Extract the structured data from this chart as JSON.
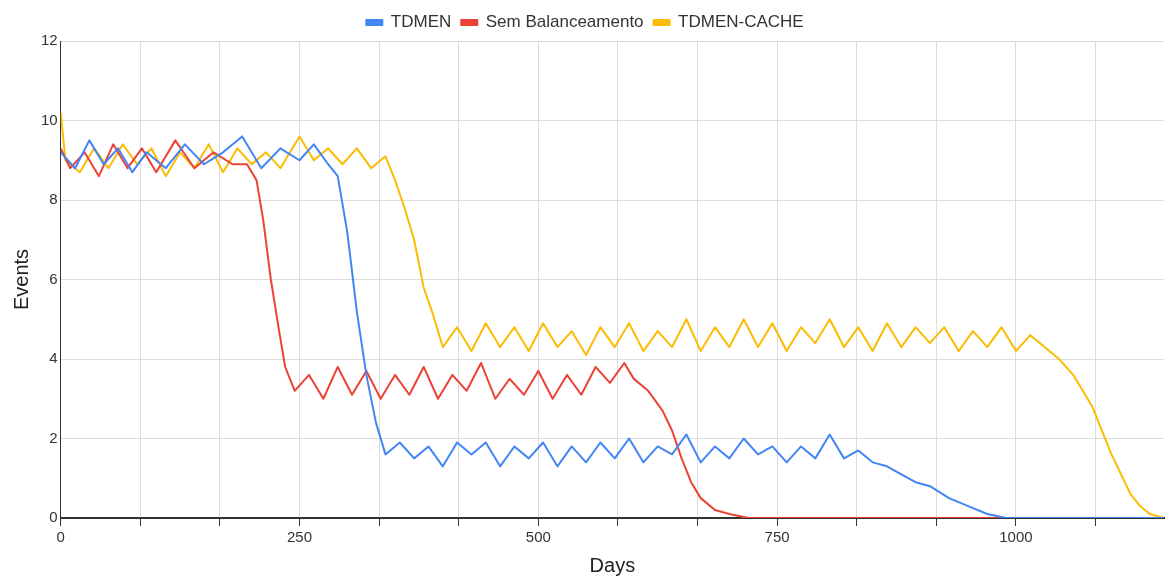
{
  "chart_data": {
    "type": "line",
    "xlabel": "Days",
    "ylabel": "Events",
    "legend": "top",
    "grid": true,
    "marker": "none",
    "line_style": "solid",
    "xlim": [
      0,
      1155
    ],
    "ylim": [
      0,
      12
    ],
    "xticks": [
      0,
      {
        "value": 83.33,
        "label": null
      },
      {
        "value": 166.67,
        "label": null
      },
      250,
      {
        "value": 333.33,
        "label": null
      },
      {
        "value": 416.67,
        "label": null
      },
      500,
      {
        "value": 583.33,
        "label": null
      },
      {
        "value": 666.67,
        "label": null
      },
      750,
      {
        "value": 833.33,
        "label": null
      },
      {
        "value": 916.67,
        "label": null
      },
      1000,
      {
        "value": 1083.33,
        "label": null
      }
    ],
    "yticks": [
      0,
      2,
      4,
      6,
      8,
      10,
      12
    ],
    "series": [
      {
        "name": "TDMEN",
        "color": "#4285f4",
        "x": [
          0,
          15,
          30,
          45,
          60,
          75,
          90,
          110,
          130,
          150,
          170,
          190,
          210,
          230,
          250,
          265,
          280,
          290,
          300,
          310,
          320,
          330,
          340,
          355,
          370,
          385,
          400,
          415,
          430,
          445,
          460,
          475,
          490,
          505,
          520,
          535,
          550,
          565,
          580,
          595,
          610,
          625,
          640,
          655,
          670,
          685,
          700,
          715,
          730,
          745,
          760,
          775,
          790,
          805,
          820,
          835,
          850,
          865,
          880,
          895,
          910,
          930,
          950,
          970,
          990,
          1155
        ],
        "values": [
          9.2,
          8.8,
          9.5,
          8.9,
          9.3,
          8.7,
          9.2,
          8.8,
          9.4,
          8.9,
          9.2,
          9.6,
          8.8,
          9.3,
          9.0,
          9.4,
          8.9,
          8.6,
          7.2,
          5.2,
          3.6,
          2.4,
          1.6,
          1.9,
          1.5,
          1.8,
          1.3,
          1.9,
          1.6,
          1.9,
          1.3,
          1.8,
          1.5,
          1.9,
          1.3,
          1.8,
          1.4,
          1.9,
          1.5,
          2.0,
          1.4,
          1.8,
          1.6,
          2.1,
          1.4,
          1.8,
          1.5,
          2.0,
          1.6,
          1.8,
          1.4,
          1.8,
          1.5,
          2.1,
          1.5,
          1.7,
          1.4,
          1.3,
          1.1,
          0.9,
          0.8,
          0.5,
          0.3,
          0.1,
          0,
          0
        ]
      },
      {
        "name": "Sem Balanceamento",
        "color": "#ea4335",
        "x": [
          0,
          10,
          25,
          40,
          55,
          70,
          85,
          100,
          120,
          140,
          160,
          180,
          195,
          205,
          212,
          220,
          228,
          235,
          245,
          260,
          275,
          290,
          305,
          320,
          335,
          350,
          365,
          380,
          395,
          410,
          425,
          440,
          455,
          470,
          485,
          500,
          515,
          530,
          545,
          560,
          575,
          590,
          600,
          615,
          630,
          640,
          650,
          660,
          670,
          685,
          700,
          720,
          1155
        ],
        "values": [
          9.3,
          8.8,
          9.2,
          8.6,
          9.4,
          8.8,
          9.3,
          8.7,
          9.5,
          8.8,
          9.2,
          8.9,
          8.9,
          8.5,
          7.5,
          6.0,
          4.8,
          3.8,
          3.2,
          3.6,
          3.0,
          3.8,
          3.1,
          3.7,
          3.0,
          3.6,
          3.1,
          3.8,
          3.0,
          3.6,
          3.2,
          3.9,
          3.0,
          3.5,
          3.1,
          3.7,
          3.0,
          3.6,
          3.1,
          3.8,
          3.4,
          3.9,
          3.5,
          3.2,
          2.7,
          2.2,
          1.5,
          0.9,
          0.5,
          0.2,
          0.1,
          0,
          0
        ]
      },
      {
        "name": "TDMEN-CACHE",
        "color": "#fbbc04",
        "x": [
          0,
          5,
          20,
          35,
          50,
          65,
          80,
          95,
          110,
          125,
          140,
          155,
          170,
          185,
          200,
          215,
          230,
          250,
          265,
          280,
          295,
          310,
          325,
          340,
          350,
          360,
          370,
          380,
          390,
          400,
          415,
          430,
          445,
          460,
          475,
          490,
          505,
          520,
          535,
          550,
          565,
          580,
          595,
          610,
          625,
          640,
          655,
          670,
          685,
          700,
          715,
          730,
          745,
          760,
          775,
          790,
          805,
          820,
          835,
          850,
          865,
          880,
          895,
          910,
          925,
          940,
          955,
          970,
          985,
          1000,
          1015,
          1030,
          1045,
          1060,
          1070,
          1080,
          1090,
          1100,
          1110,
          1120,
          1130,
          1140,
          1155
        ],
        "values": [
          10.2,
          9.0,
          8.7,
          9.3,
          8.8,
          9.4,
          8.9,
          9.3,
          8.6,
          9.2,
          8.8,
          9.4,
          8.7,
          9.3,
          8.9,
          9.2,
          8.8,
          9.6,
          9.0,
          9.3,
          8.9,
          9.3,
          8.8,
          9.1,
          8.5,
          7.8,
          7.0,
          5.8,
          5.1,
          4.3,
          4.8,
          4.2,
          4.9,
          4.3,
          4.8,
          4.2,
          4.9,
          4.3,
          4.7,
          4.1,
          4.8,
          4.3,
          4.9,
          4.2,
          4.7,
          4.3,
          5.0,
          4.2,
          4.8,
          4.3,
          5.0,
          4.3,
          4.9,
          4.2,
          4.8,
          4.4,
          5.0,
          4.3,
          4.8,
          4.2,
          4.9,
          4.3,
          4.8,
          4.4,
          4.8,
          4.2,
          4.7,
          4.3,
          4.8,
          4.2,
          4.6,
          4.3,
          4.0,
          3.6,
          3.2,
          2.8,
          2.2,
          1.6,
          1.1,
          0.6,
          0.3,
          0.1,
          0
        ]
      }
    ]
  }
}
